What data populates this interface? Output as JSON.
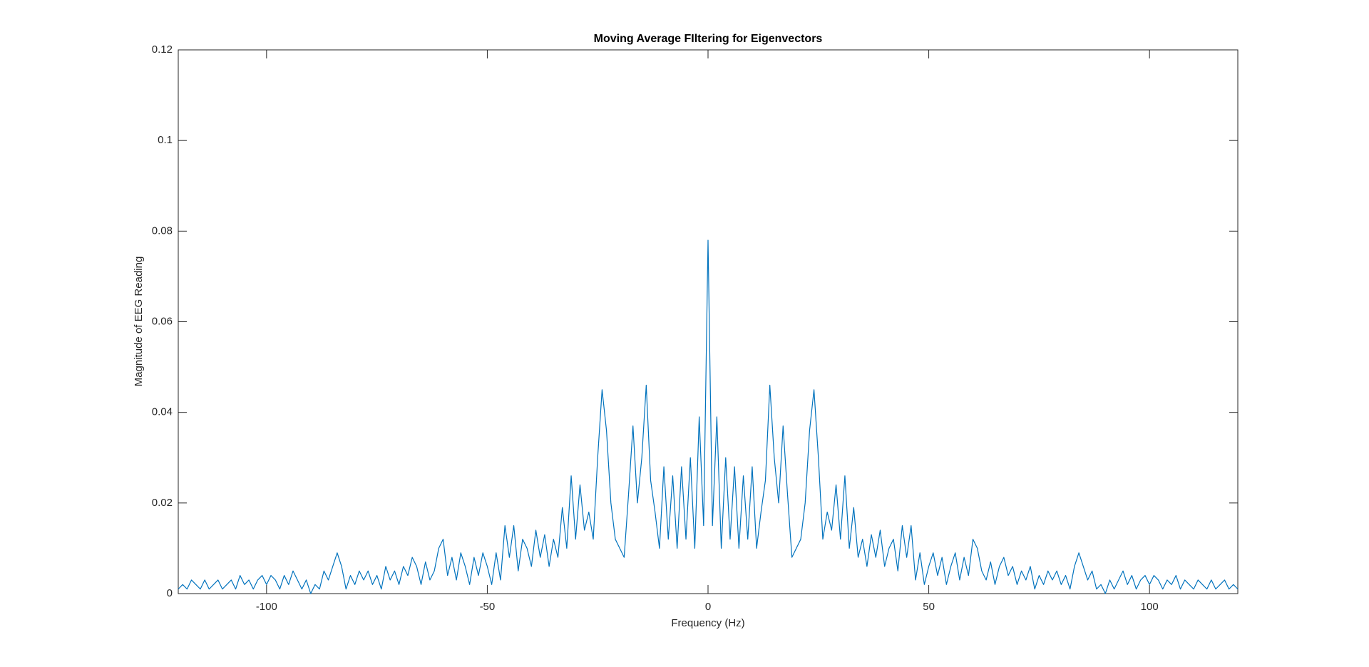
{
  "chart_data": {
    "type": "line",
    "title": "Moving Average FIltering for Eigenvectors",
    "x_label": "Frequency (Hz)",
    "y_label": "Magnitude of EEG Reading",
    "xlim": [
      -120,
      120
    ],
    "xticks": [
      -100,
      -50,
      0,
      50,
      100
    ],
    "ylim": [
      0,
      0.12
    ],
    "yticks": [
      0,
      0.02,
      0.04,
      0.06,
      0.08,
      0.1,
      0.12
    ],
    "grid": false,
    "color": "#0072bd",
    "x": [
      -120,
      -119,
      -118,
      -117,
      -116,
      -115,
      -114,
      -113,
      -112,
      -111,
      -110,
      -109,
      -108,
      -107,
      -106,
      -105,
      -104,
      -103,
      -102,
      -101,
      -100,
      -99,
      -98,
      -97,
      -96,
      -95,
      -94,
      -93,
      -92,
      -91,
      -90,
      -89,
      -88,
      -87,
      -86,
      -85,
      -84,
      -83,
      -82,
      -81,
      -80,
      -79,
      -78,
      -77,
      -76,
      -75,
      -74,
      -73,
      -72,
      -71,
      -70,
      -69,
      -68,
      -67,
      -66,
      -65,
      -64,
      -63,
      -62,
      -61,
      -60,
      -59,
      -58,
      -57,
      -56,
      -55,
      -54,
      -53,
      -52,
      -51,
      -50,
      -49,
      -48,
      -47,
      -46,
      -45,
      -44,
      -43,
      -42,
      -41,
      -40,
      -39,
      -38,
      -37,
      -36,
      -35,
      -34,
      -33,
      -32,
      -31,
      -30,
      -29,
      -28,
      -27,
      -26,
      -25,
      -24,
      -23,
      -22,
      -21,
      -20,
      -19,
      -18,
      -17,
      -16,
      -15,
      -14,
      -13,
      -12,
      -11,
      -10,
      -9,
      -8,
      -7,
      -6,
      -5,
      -4,
      -3,
      -2,
      -1,
      0,
      1,
      2,
      3,
      4,
      5,
      6,
      7,
      8,
      9,
      10,
      11,
      12,
      13,
      14,
      15,
      16,
      17,
      18,
      19,
      20,
      21,
      22,
      23,
      24,
      25,
      26,
      27,
      28,
      29,
      30,
      31,
      32,
      33,
      34,
      35,
      36,
      37,
      38,
      39,
      40,
      41,
      42,
      43,
      44,
      45,
      46,
      47,
      48,
      49,
      50,
      51,
      52,
      53,
      54,
      55,
      56,
      57,
      58,
      59,
      60,
      61,
      62,
      63,
      64,
      65,
      66,
      67,
      68,
      69,
      70,
      71,
      72,
      73,
      74,
      75,
      76,
      77,
      78,
      79,
      80,
      81,
      82,
      83,
      84,
      85,
      86,
      87,
      88,
      89,
      90,
      91,
      92,
      93,
      94,
      95,
      96,
      97,
      98,
      99,
      100,
      101,
      102,
      103,
      104,
      105,
      106,
      107,
      108,
      109,
      110,
      111,
      112,
      113,
      114,
      115,
      116,
      117,
      118,
      119,
      120
    ],
    "values": [
      0.001,
      0.002,
      0.001,
      0.003,
      0.002,
      0.001,
      0.003,
      0.001,
      0.002,
      0.003,
      0.001,
      0.002,
      0.003,
      0.001,
      0.004,
      0.002,
      0.003,
      0.001,
      0.003,
      0.004,
      0.002,
      0.004,
      0.003,
      0.001,
      0.004,
      0.002,
      0.005,
      0.003,
      0.001,
      0.003,
      0,
      0.002,
      0.001,
      0.005,
      0.003,
      0.006,
      0.009,
      0.006,
      0.001,
      0.004,
      0.002,
      0.005,
      0.003,
      0.005,
      0.002,
      0.004,
      0.001,
      0.006,
      0.003,
      0.005,
      0.002,
      0.006,
      0.004,
      0.008,
      0.006,
      0.002,
      0.007,
      0.003,
      0.005,
      0.01,
      0.012,
      0.004,
      0.008,
      0.003,
      0.009,
      0.006,
      0.002,
      0.008,
      0.004,
      0.009,
      0.006,
      0.002,
      0.009,
      0.003,
      0.015,
      0.008,
      0.015,
      0.005,
      0.012,
      0.01,
      0.006,
      0.014,
      0.008,
      0.013,
      0.006,
      0.012,
      0.008,
      0.019,
      0.01,
      0.026,
      0.012,
      0.024,
      0.014,
      0.018,
      0.012,
      0.03,
      0.045,
      0.036,
      0.02,
      0.012,
      0.01,
      0.008,
      0.022,
      0.037,
      0.02,
      0.03,
      0.046,
      0.025,
      0.018,
      0.01,
      0.028,
      0.012,
      0.026,
      0.01,
      0.028,
      0.012,
      0.03,
      0.01,
      0.039,
      0.015,
      0.078,
      0.015,
      0.039,
      0.01,
      0.03,
      0.012,
      0.028,
      0.01,
      0.026,
      0.012,
      0.028,
      0.01,
      0.018,
      0.025,
      0.046,
      0.03,
      0.02,
      0.037,
      0.022,
      0.008,
      0.01,
      0.012,
      0.02,
      0.036,
      0.045,
      0.03,
      0.012,
      0.018,
      0.014,
      0.024,
      0.012,
      0.026,
      0.01,
      0.019,
      0.008,
      0.012,
      0.006,
      0.013,
      0.008,
      0.014,
      0.006,
      0.01,
      0.012,
      0.005,
      0.015,
      0.008,
      0.015,
      0.003,
      0.009,
      0.002,
      0.006,
      0.009,
      0.004,
      0.008,
      0.002,
      0.006,
      0.009,
      0.003,
      0.008,
      0.004,
      0.012,
      0.01,
      0.005,
      0.003,
      0.007,
      0.002,
      0.006,
      0.008,
      0.004,
      0.006,
      0.002,
      0.005,
      0.003,
      0.006,
      0.001,
      0.004,
      0.002,
      0.005,
      0.003,
      0.005,
      0.002,
      0.004,
      0.001,
      0.006,
      0.009,
      0.006,
      0.003,
      0.005,
      0.001,
      0.002,
      0,
      0.003,
      0.001,
      0.003,
      0.005,
      0.002,
      0.004,
      0.001,
      0.003,
      0.004,
      0.002,
      0.004,
      0.003,
      0.001,
      0.003,
      0.002,
      0.004,
      0.001,
      0.003,
      0.002,
      0.001,
      0.003,
      0.002,
      0.001,
      0.003,
      0.001,
      0.002,
      0.003,
      0.001,
      0.002,
      0.001
    ]
  }
}
